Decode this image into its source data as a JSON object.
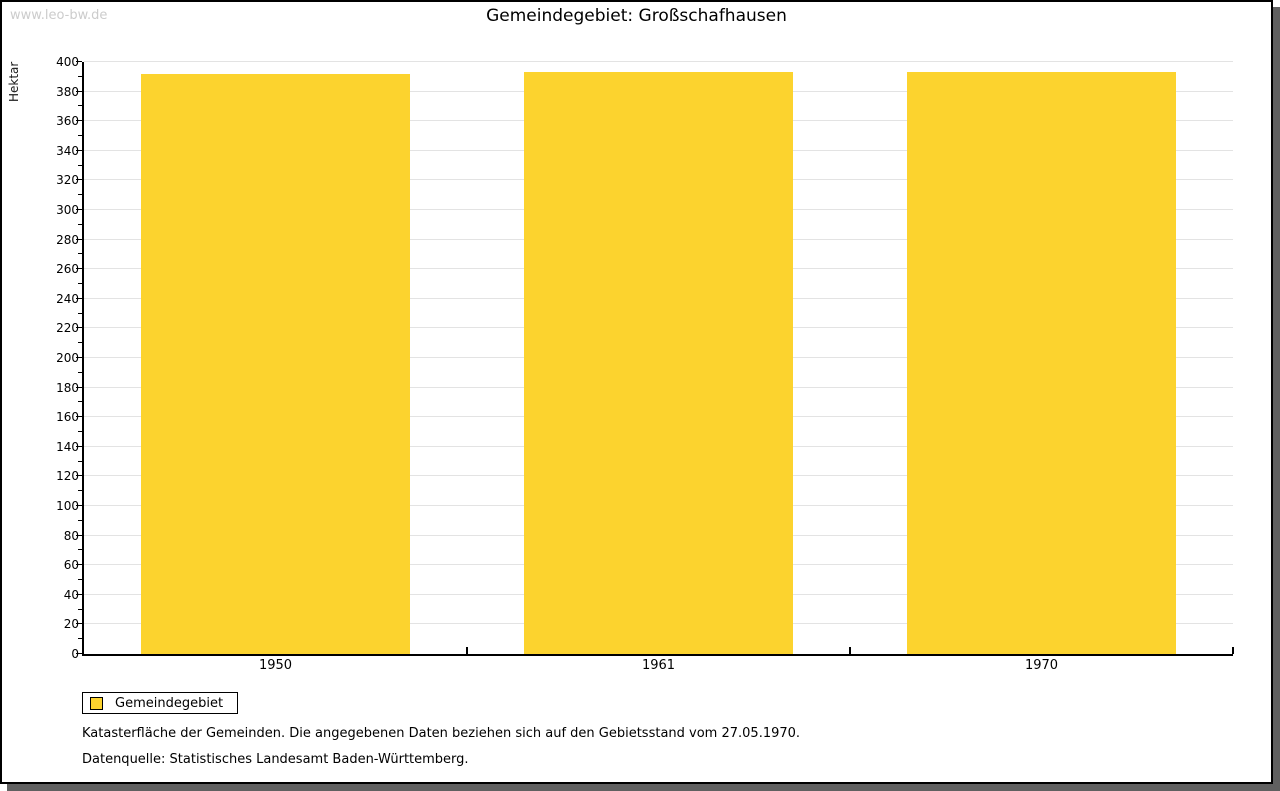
{
  "watermark": "www.leo-bw.de",
  "header": {
    "title": "Gemeindegebiet: Großschafhausen"
  },
  "chart_data": {
    "type": "bar",
    "title": "Gemeindegebiet: Großschafhausen",
    "categories": [
      "1950",
      "1961",
      "1970"
    ],
    "series": [
      {
        "name": "Gemeindegebiet",
        "values": [
          392,
          393,
          393
        ]
      }
    ],
    "xlabel": "",
    "ylabel": "Hektar",
    "ylim": [
      0,
      400
    ],
    "ytick_step": 20,
    "ytick_minor_step": 10,
    "grid": true,
    "legend_position": "bottom-left",
    "bar_color": "#FCD32E"
  },
  "legend": {
    "items": [
      {
        "label": "Gemeindegebiet",
        "color": "#FCD32E"
      }
    ]
  },
  "footnotes": [
    "Katasterfläche der Gemeinden. Die angegebenen Daten beziehen sich auf den Gebietsstand vom 27.05.1970.",
    "Datenquelle: Statistisches Landesamt Baden-Württemberg."
  ],
  "colors": {
    "bar": "#FCD32E",
    "gridline": "#e3e3e3",
    "axis": "#000000",
    "watermark": "#cccccc",
    "frame_shadow": "#606060"
  }
}
